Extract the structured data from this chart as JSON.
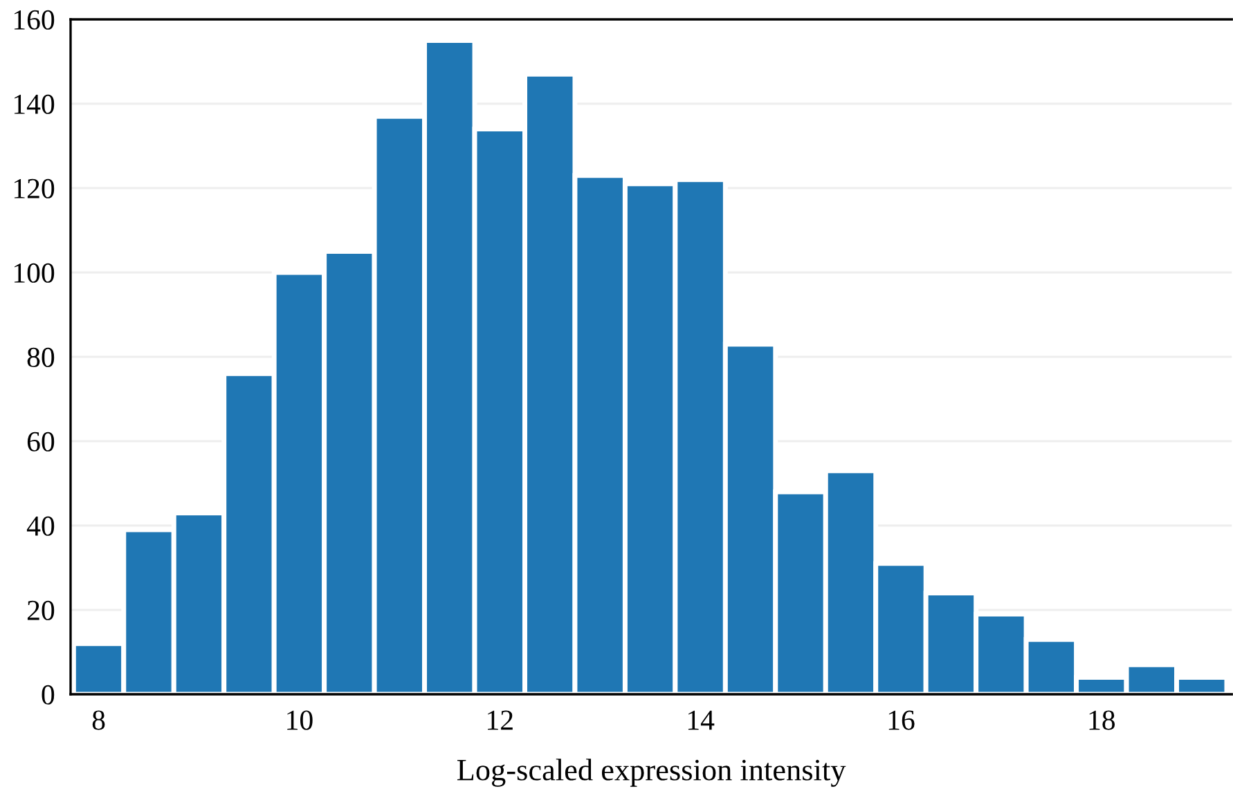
{
  "chart_data": {
    "type": "histogram",
    "xlabel": "Log-scaled expression intensity",
    "bins": [
      7.75,
      8.25,
      8.75,
      9.25,
      9.75,
      10.25,
      10.75,
      11.25,
      11.75,
      12.25,
      12.75,
      13.25,
      13.75,
      14.25,
      14.75,
      15.25,
      15.75,
      16.25,
      16.75,
      17.25,
      17.75,
      18.25,
      18.75,
      19.25
    ],
    "values": [
      12,
      39,
      43,
      76,
      100,
      105,
      137,
      155,
      134,
      147,
      123,
      121,
      122,
      83,
      48,
      53,
      31,
      24,
      19,
      13,
      4,
      7,
      4
    ],
    "color": "#1f77b4",
    "xlim": [
      7.72,
      19.3
    ],
    "xticks": [
      8,
      10,
      12,
      14,
      16,
      18
    ],
    "ylim": [
      0,
      160
    ],
    "yticks": [
      0,
      20,
      40,
      60,
      80,
      100,
      120,
      140,
      160
    ],
    "grid": "y"
  }
}
